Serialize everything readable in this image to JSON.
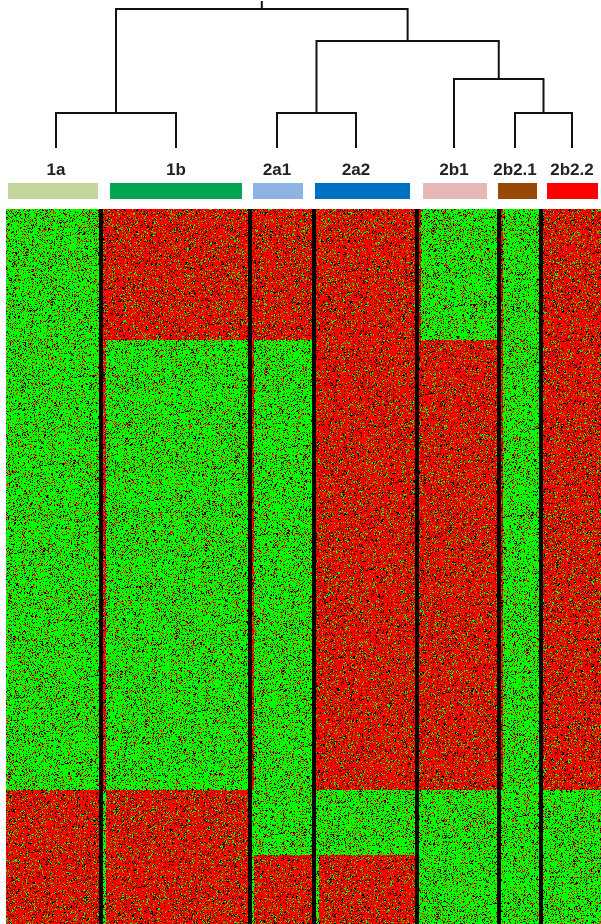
{
  "chart_data": {
    "type": "heatmap",
    "title": "",
    "clusters": [
      {
        "label": "1a",
        "color": "#c3d69b"
      },
      {
        "label": "1b",
        "color": "#00a651"
      },
      {
        "label": "2a1",
        "color": "#8db3e2"
      },
      {
        "label": "2a2",
        "color": "#0070c0"
      },
      {
        "label": "2b1",
        "color": "#e6b9b8"
      },
      {
        "label": "2b2.1",
        "color": "#984807"
      },
      {
        "label": "2b2.2",
        "color": "#ff0000"
      }
    ],
    "dendrogram": [
      {
        "merge": [
          "1a",
          "1b"
        ],
        "name": "1"
      },
      {
        "merge": [
          "2a1",
          "2a2"
        ],
        "name": "2a"
      },
      {
        "merge": [
          "2b2.1",
          "2b2.2"
        ],
        "name": "2b2"
      },
      {
        "merge": [
          "2b1",
          "2b2"
        ],
        "name": "2b"
      },
      {
        "merge": [
          "2a",
          "2b"
        ],
        "name": "2"
      },
      {
        "merge": [
          "1",
          "2"
        ],
        "name": "root"
      }
    ],
    "row_blocks": [
      "block-1",
      "block-2",
      "block-3",
      "block-4"
    ],
    "block_pattern": {
      "block-1": [
        "low",
        "high",
        "high",
        "high",
        "low",
        "low",
        "high"
      ],
      "block-2": [
        "low",
        "low",
        "low",
        "high",
        "high",
        "low",
        "high"
      ],
      "block-3": [
        "high",
        "high",
        "low",
        "low",
        "low",
        "low",
        "low"
      ],
      "block-4": [
        "high",
        "high",
        "high",
        "high",
        "low",
        "low",
        "low"
      ]
    },
    "color_scale": {
      "low": "#00ff00",
      "mid": "#000000",
      "high": "#ff0000"
    }
  }
}
